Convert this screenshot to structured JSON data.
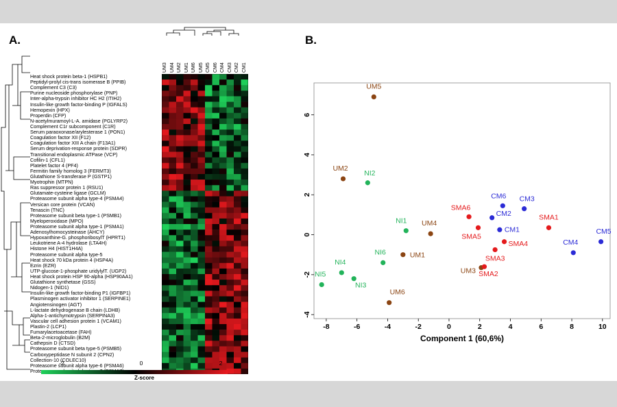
{
  "panels": {
    "a": "A.",
    "b": "B."
  },
  "heatmap": {
    "columns": [
      "UM3",
      "UM4",
      "UM2",
      "UM1",
      "UM6",
      "UM5",
      "CM5",
      "CM6",
      "CM4",
      "CM3",
      "CM2",
      "CM1"
    ],
    "genes": [
      "Heat shock protein beta-1 (HSPB1)",
      "Peptidyl-prolyl cis-trans isomerase B (PPIB)",
      "Complement C3 (C3)",
      "Purine nucleoside phosphorylase (PNP)",
      "Inter-alpha-trypsin inhibitor HC H2 (ITIH2)",
      "Insulin-like growth factor-binding P (IGFALS)",
      "Hemopexin (HPX)",
      "Properdin (CFP)",
      "N-acetylmuramoyl-L-A. amidase (PGLYRP2)",
      "Complement C1r subcomponent (C1R)",
      "Serum paraoxonase/arylesterase 1 (PON1)",
      "Coagulation factor XII (F12)",
      "Coagulation factor XIII A chain (F13A1)",
      "Serum deprivation-response protein (SDPR)",
      "Transitional endoplasmic ATPase (VCP)",
      "Cofilin-1 (CFL1)",
      "Platelet factor 4 (PF4)",
      "Fermitin family homolog 3 (FERMT3)",
      "Glutathione S-transferase P (GSTP1)",
      "Myotrophin (MTPN)",
      "Ras suppressor protein 1 (RSU1)",
      "Glutamate-cysteine ligase (GCLM)",
      "Proteasome subunit alpha type-4 (PSMA4)",
      "Versican core protein (VCAN)",
      "Tenascin (TNC)",
      "Proteasome subunit beta type-1 (PSMB1)",
      "Myeloperoxidase (MPO)",
      "Proteasome subunit alpha type-1 (PSMA1)",
      "Adenosylhomocysteinase (AHCY)",
      "Hypoxanthine-G. phosphoribosylT (HPRT1)",
      "Leukotriene A-4 hydrolase (LTA4H)",
      "Histone H4 (HIST1H4A)",
      "Proteasome subunit alpha type-5",
      "Heat shock 70 kDa protein 4 (HSP4A)",
      "Ezrin (EZR)",
      "UTP-glucose-1-phosphate uridylylT. (UGP2)",
      "Heat shock protein HSP 90-alpha (HSP90AA1)",
      "Glutathione synthetase (GSS)",
      "Nidogen-1 (NID1)",
      "Insulin-like growth factor-binding P1 (IGFBP1)",
      "Plasminogen activator inhibitor 1 (SERPINE1)",
      "Angiotensinogen (AGT)",
      "L-lactate dehydrogenase B chain (LDHB)",
      "Alpha-1-antichymotrypsin (SERPINA3)",
      "Vascular cell adhesion protein 1 (VCAM1)",
      "Plastin-2 (LCP1)",
      "Fumarylacetoacetase (FAH)",
      "Beta-2-microglobulin (B2M)",
      "Cathepsin D (CTSD)",
      "Proteasome subunit beta type-5 (PSMB5)",
      "Carboxypeptidase N subunit 2 (CPN2)",
      "Collection-10 (COLEC10)",
      "Proteasome subunit alpha type-6 (PSMA6)",
      "Proteasome subunit alpha type-7 (PSMA7)"
    ],
    "colorbar": {
      "ticks": [
        "-2",
        "0",
        "2"
      ],
      "label": "Z-score",
      "low_color": "#1fd15a",
      "mid_color": "#000000",
      "high_color": "#e8191e"
    }
  },
  "chart_data": {
    "type": "scatter",
    "xlabel": "Component 1 (60,6%)",
    "ylabel": "Component 2 (10,8%)",
    "xlim": [
      -8.8,
      10.5
    ],
    "ylim": [
      -4.2,
      7.6
    ],
    "xticks": [
      -8,
      -6,
      -4,
      -2,
      0,
      2,
      4,
      6,
      8,
      10
    ],
    "yticks": [
      -4,
      -2,
      0,
      2,
      4,
      6
    ],
    "groups": {
      "UM": "#8b4513",
      "NI": "#22b35a",
      "SMA": "#e41a1c",
      "CM": "#2b2bd6"
    },
    "points": [
      {
        "label": "UM5",
        "group": "UM",
        "x": -4.9,
        "y": 6.9
      },
      {
        "label": "UM2",
        "group": "UM",
        "x": -6.9,
        "y": 2.8
      },
      {
        "label": "UM4",
        "group": "UM",
        "x": -1.2,
        "y": 0.05
      },
      {
        "label": "UM1",
        "group": "UM",
        "x": -3.0,
        "y": -1.0
      },
      {
        "label": "UM3",
        "group": "UM",
        "x": 2.1,
        "y": -1.65
      },
      {
        "label": "UM6",
        "group": "UM",
        "x": -3.9,
        "y": -3.4
      },
      {
        "label": "NI2",
        "group": "NI",
        "x": -5.3,
        "y": 2.6
      },
      {
        "label": "NI1",
        "group": "NI",
        "x": -2.8,
        "y": 0.2
      },
      {
        "label": "NI6",
        "group": "NI",
        "x": -4.3,
        "y": -1.4
      },
      {
        "label": "NI4",
        "group": "NI",
        "x": -7.0,
        "y": -1.9
      },
      {
        "label": "NI3",
        "group": "NI",
        "x": -6.2,
        "y": -2.2
      },
      {
        "label": "NI5",
        "group": "NI",
        "x": -8.3,
        "y": -2.5
      },
      {
        "label": "SMA6",
        "group": "SMA",
        "x": 1.3,
        "y": 0.9
      },
      {
        "label": "SMA5",
        "group": "SMA",
        "x": 1.9,
        "y": 0.35
      },
      {
        "label": "SMA4",
        "group": "SMA",
        "x": 3.6,
        "y": -0.35
      },
      {
        "label": "SMA3",
        "group": "SMA",
        "x": 3.0,
        "y": -0.75
      },
      {
        "label": "SMA2",
        "group": "SMA",
        "x": 2.3,
        "y": -1.6
      },
      {
        "label": "SMA1",
        "group": "SMA",
        "x": 6.5,
        "y": 0.35
      },
      {
        "label": "CM6",
        "group": "CM",
        "x": 3.5,
        "y": 1.45
      },
      {
        "label": "CM3",
        "group": "CM",
        "x": 4.9,
        "y": 1.3
      },
      {
        "label": "CM2",
        "group": "CM",
        "x": 2.8,
        "y": 0.85
      },
      {
        "label": "CM1",
        "group": "CM",
        "x": 3.3,
        "y": 0.25
      },
      {
        "label": "CM5",
        "group": "CM",
        "x": 9.9,
        "y": -0.35
      },
      {
        "label": "CM4",
        "group": "CM",
        "x": 8.1,
        "y": -0.9
      }
    ]
  }
}
